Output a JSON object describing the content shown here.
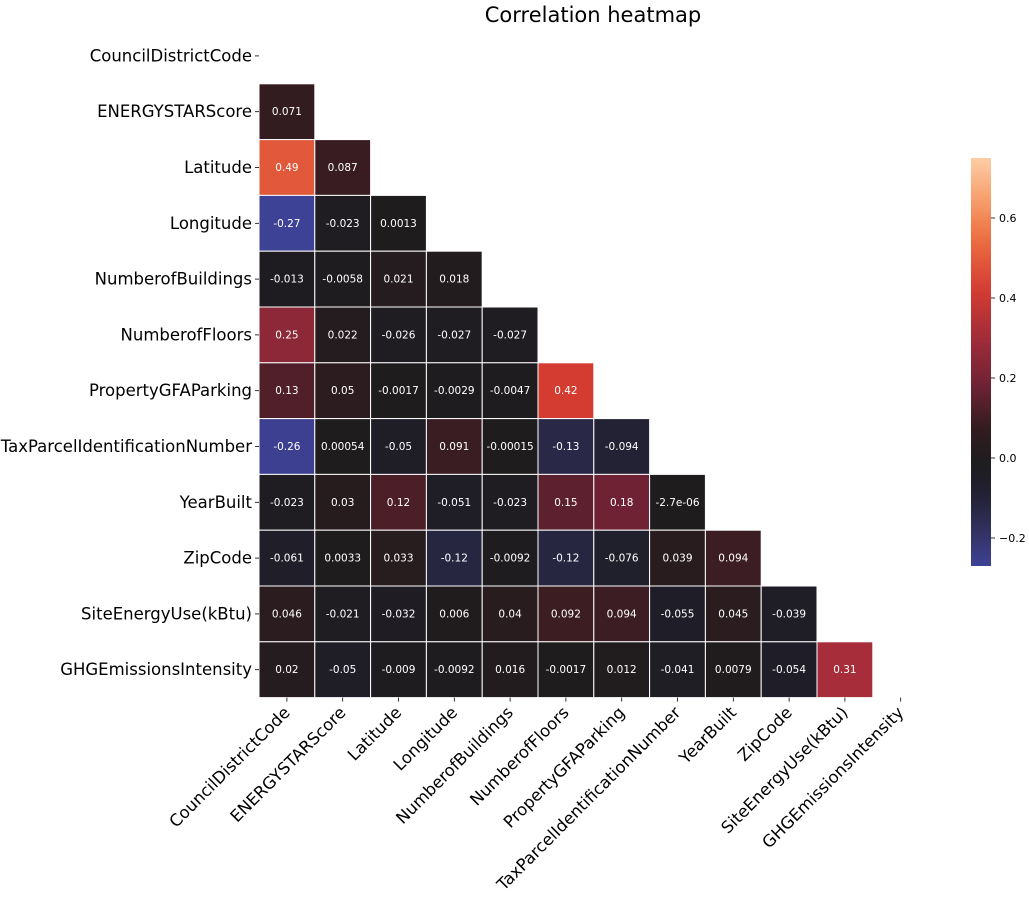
{
  "chart_data": {
    "type": "heatmap",
    "title": "Correlation heatmap",
    "variables": [
      "CouncilDistrictCode",
      "ENERGYSTARScore",
      "Latitude",
      "Longitude",
      "NumberofBuildings",
      "NumberofFloors",
      "PropertyGFAParking",
      "TaxParcelIdentificationNumber",
      "YearBuilt",
      "ZipCode",
      "SiteEnergyUse(kBtu)",
      "GHGEmissionsIntensity"
    ],
    "mask": "upper-triangle-and-diagonal",
    "values": [
      [],
      [
        0.071
      ],
      [
        0.49,
        0.087
      ],
      [
        -0.27,
        -0.023,
        0.0013
      ],
      [
        -0.013,
        -0.0058,
        0.021,
        0.018
      ],
      [
        0.25,
        0.022,
        -0.026,
        -0.027,
        -0.027
      ],
      [
        0.13,
        0.05,
        -0.0017,
        -0.0029,
        -0.0047,
        0.42
      ],
      [
        -0.26,
        0.00054,
        -0.05,
        0.091,
        -0.00015,
        -0.13,
        -0.094
      ],
      [
        -0.023,
        0.03,
        0.12,
        -0.051,
        -0.023,
        0.15,
        0.18,
        -2.7e-06
      ],
      [
        -0.061,
        0.0033,
        0.033,
        -0.12,
        -0.0092,
        -0.12,
        -0.076,
        0.039,
        0.094
      ],
      [
        0.046,
        -0.021,
        -0.032,
        0.006,
        0.04,
        0.092,
        0.094,
        -0.055,
        0.045,
        -0.039
      ],
      [
        0.02,
        -0.05,
        -0.009,
        -0.0092,
        0.016,
        -0.0017,
        0.012,
        -0.041,
        0.0079,
        -0.054,
        0.31
      ]
    ],
    "annotations": [
      [],
      [
        "0.071"
      ],
      [
        "0.49",
        "0.087"
      ],
      [
        "-0.27",
        "-0.023",
        "0.0013"
      ],
      [
        "-0.013",
        "-0.0058",
        "0.021",
        "0.018"
      ],
      [
        "0.25",
        "0.022",
        "-0.026",
        "-0.027",
        "-0.027"
      ],
      [
        "0.13",
        "0.05",
        "-0.0017",
        "-0.0029",
        "-0.0047",
        "0.42"
      ],
      [
        "-0.26",
        "0.00054",
        "-0.05",
        "0.091",
        "-0.00015",
        "-0.13",
        "-0.094"
      ],
      [
        "-0.023",
        "0.03",
        "0.12",
        "-0.051",
        "-0.023",
        "0.15",
        "0.18",
        "-2.7e-06"
      ],
      [
        "-0.061",
        "0.0033",
        "0.033",
        "-0.12",
        "-0.0092",
        "-0.12",
        "-0.076",
        "0.039",
        "0.094"
      ],
      [
        "0.046",
        "-0.021",
        "-0.032",
        "0.006",
        "0.04",
        "0.092",
        "0.094",
        "-0.055",
        "0.045",
        "-0.039"
      ],
      [
        "0.02",
        "-0.05",
        "-0.009",
        "-0.0092",
        "0.016",
        "-0.0017",
        "0.012",
        "-0.041",
        "0.0079",
        "-0.054",
        "0.31"
      ]
    ],
    "colormap": "icefire",
    "center": 0,
    "colorbar": {
      "range": [
        -0.27,
        0.75
      ],
      "ticks": [
        -0.2,
        0.0,
        0.2,
        0.4,
        0.6
      ],
      "tick_labels": [
        "−0.2",
        "0.0",
        "0.2",
        "0.4",
        "0.6"
      ]
    },
    "colors": {
      "cell_border": "#ffffff",
      "annotation_text": "#ffffff",
      "label_text": "#000000"
    }
  }
}
